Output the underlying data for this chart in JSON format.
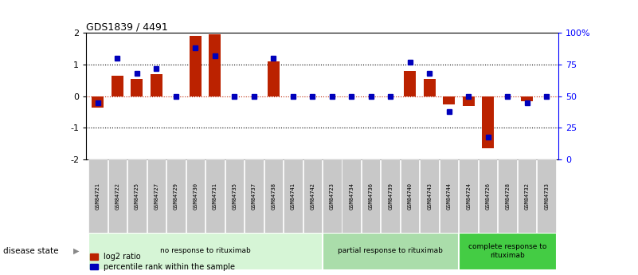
{
  "title": "GDS1839 / 4491",
  "samples": [
    "GSM84721",
    "GSM84722",
    "GSM84725",
    "GSM84727",
    "GSM84729",
    "GSM84730",
    "GSM84731",
    "GSM84735",
    "GSM84737",
    "GSM84738",
    "GSM84741",
    "GSM84742",
    "GSM84723",
    "GSM84734",
    "GSM84736",
    "GSM84739",
    "GSM84740",
    "GSM84743",
    "GSM84744",
    "GSM84724",
    "GSM84726",
    "GSM84728",
    "GSM84732",
    "GSM84733"
  ],
  "log2_ratio": [
    -0.35,
    0.65,
    0.55,
    0.7,
    0.0,
    1.9,
    1.95,
    0.0,
    0.0,
    1.1,
    0.0,
    0.0,
    0.0,
    0.0,
    0.0,
    0.0,
    0.8,
    0.55,
    -0.25,
    -0.3,
    -1.65,
    0.0,
    -0.15,
    0.0
  ],
  "percentile": [
    45,
    80,
    68,
    72,
    50,
    88,
    82,
    50,
    50,
    80,
    50,
    50,
    50,
    50,
    50,
    50,
    77,
    68,
    38,
    50,
    18,
    50,
    45,
    50
  ],
  "groups": [
    {
      "label": "no response to rituximab",
      "start": 0,
      "end": 12,
      "color": "#d6f5d6"
    },
    {
      "label": "partial response to rituximab",
      "start": 12,
      "end": 19,
      "color": "#aaddaa"
    },
    {
      "label": "complete response to\nrituximab",
      "start": 19,
      "end": 24,
      "color": "#44cc44"
    }
  ],
  "bar_color_red": "#bb2200",
  "bar_color_blue": "#0000bb",
  "ylim": [
    -2,
    2
  ],
  "y2lim": [
    0,
    100
  ],
  "yticks": [
    -2,
    -1,
    0,
    1,
    2
  ],
  "y2ticks": [
    0,
    25,
    50,
    75,
    100
  ],
  "y2ticklabels": [
    "0",
    "25",
    "50",
    "75",
    "100%"
  ],
  "hline_y": [
    1,
    -1
  ],
  "legend_items": [
    {
      "label": "log2 ratio",
      "color": "#bb2200"
    },
    {
      "label": "percentile rank within the sample",
      "color": "#0000bb"
    }
  ],
  "disease_state_label": "disease state",
  "bar_width": 0.6
}
